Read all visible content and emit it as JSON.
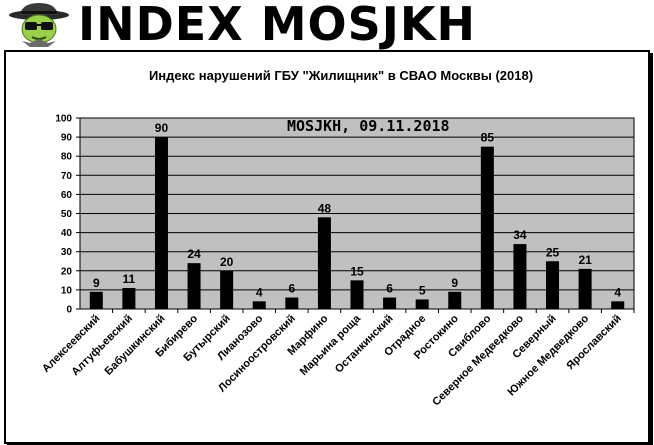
{
  "banner": {
    "logo_icon": "spy-detective-icon",
    "title": "INDEX MOSJKH"
  },
  "watermark": "MOSJKH, 09.11.2018",
  "colors": {
    "plot_background": "#c0c0c0",
    "bar": "#000000",
    "grid": "#000000"
  },
  "chart_data": {
    "type": "bar",
    "title": "Индекс нарушений ГБУ \"Жилищник\" в СВАО Москвы (2018)",
    "xlabel": "",
    "ylabel": "",
    "ylim": [
      0,
      100
    ],
    "yticks": [
      0,
      10,
      20,
      30,
      40,
      50,
      60,
      70,
      80,
      90,
      100
    ],
    "grid": true,
    "legend": "none",
    "categories": [
      "Алексеевский",
      "Алтуфьевский",
      "Бабушкинский",
      "Бибирево",
      "Бутырский",
      "Лианозово",
      "Лосиноостровский",
      "Марфино",
      "Марьина роща",
      "Останкинский",
      "Отрадное",
      "Ростокино",
      "Свиблово",
      "Северное Медведково",
      "Северный",
      "Южное Медведково",
      "Ярославский"
    ],
    "values": [
      9,
      11,
      90,
      24,
      20,
      4,
      6,
      48,
      15,
      6,
      5,
      9,
      85,
      34,
      25,
      21,
      4
    ]
  }
}
